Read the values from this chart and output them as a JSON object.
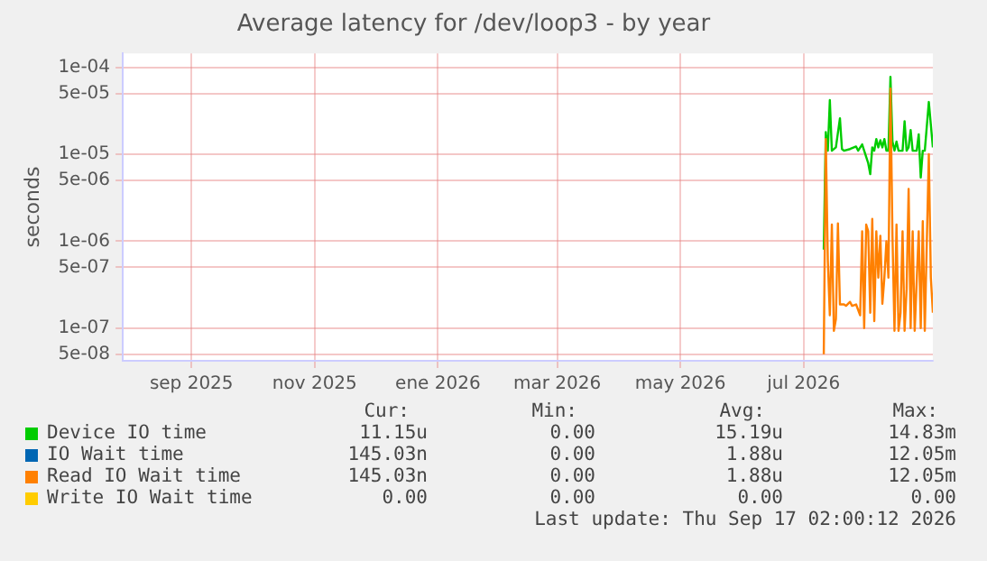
{
  "chart_data": {
    "type": "line",
    "title": "Average latency for /dev/loop3 - by year",
    "ylabel": "seconds",
    "log": "y",
    "grid": true,
    "legend": "bottom",
    "marker": "none",
    "line_style": "solid",
    "xlim": [
      "2025-08-12",
      "2026-09-17"
    ],
    "xticks": [
      {
        "value": "2025-09-15",
        "label": "sep 2025"
      },
      {
        "value": "2025-11-15",
        "label": "nov 2025"
      },
      {
        "value": "2026-01-15",
        "label": "ene 2026"
      },
      {
        "value": "2026-03-15",
        "label": "mar 2026"
      },
      {
        "value": "2026-05-15",
        "label": "may 2026"
      },
      {
        "value": "2026-07-15",
        "label": "jul 2026"
      }
    ],
    "ylim": [
      4.2e-08,
      0.000145
    ],
    "yticks": [
      {
        "value": 0.0001,
        "label": "1e-04"
      },
      {
        "value": 5e-05,
        "label": "5e-05"
      },
      {
        "value": 1e-05,
        "label": "1e-05"
      },
      {
        "value": 5e-06,
        "label": "5e-06"
      },
      {
        "value": 1e-06,
        "label": "1e-06"
      },
      {
        "value": 5e-07,
        "label": "5e-07"
      },
      {
        "value": 1e-07,
        "label": "1e-07"
      },
      {
        "value": 5e-08,
        "label": "5e-08"
      }
    ],
    "series": [
      {
        "name": "Device IO time",
        "color": "#00cc00",
        "x": [
          "2026-07-25",
          "2026-07-26",
          "2026-07-27",
          "2026-07-28",
          "2026-07-29",
          "2026-07-31",
          "2026-08-02",
          "2026-08-03",
          "2026-08-04",
          "2026-08-07",
          "2026-08-10",
          "2026-08-11",
          "2026-08-13",
          "2026-08-14",
          "2026-08-16",
          "2026-08-17",
          "2026-08-18",
          "2026-08-19",
          "2026-08-20",
          "2026-08-21",
          "2026-08-22",
          "2026-08-23",
          "2026-08-24",
          "2026-08-25",
          "2026-08-26",
          "2026-08-27",
          "2026-08-28",
          "2026-08-29",
          "2026-08-30",
          "2026-08-31",
          "2026-09-02",
          "2026-09-03",
          "2026-09-04",
          "2026-09-05",
          "2026-09-06",
          "2026-09-07",
          "2026-09-09",
          "2026-09-10",
          "2026-09-11",
          "2026-09-12",
          "2026-09-13",
          "2026-09-15",
          "2026-09-17"
        ],
        "values": [
          8e-07,
          1.8e-05,
          1.1e-05,
          4.2e-05,
          1.1e-05,
          1.2e-05,
          2.6e-05,
          1.15e-05,
          1.1e-05,
          1.15e-05,
          1.23e-05,
          1.1e-05,
          1.3e-05,
          1.1e-05,
          7.9e-06,
          5.9e-06,
          1.2e-05,
          1.1e-05,
          1.5e-05,
          1.2e-05,
          1.45e-05,
          1.2e-05,
          1.5e-05,
          1.1e-05,
          1.1e-05,
          7.8e-05,
          1.4e-05,
          1.1e-05,
          1.4e-05,
          1.1e-05,
          1.1e-05,
          2.4e-05,
          1.1e-05,
          1.2e-05,
          1.9e-05,
          1.1e-05,
          1.1e-05,
          1.7e-05,
          5.4e-06,
          1.1e-05,
          1.1e-05,
          4e-05,
          1.2e-05
        ]
      },
      {
        "name": "IO Wait time",
        "color": "#0066b3"
      },
      {
        "name": "Read IO Wait time",
        "color": "#ff8000",
        "x": [
          "2026-07-25",
          "2026-07-26",
          "2026-07-27",
          "2026-07-28",
          "2026-07-29",
          "2026-07-30",
          "2026-07-31",
          "2026-08-01",
          "2026-08-02",
          "2026-08-04",
          "2026-08-05",
          "2026-08-07",
          "2026-08-08",
          "2026-08-10",
          "2026-08-12",
          "2026-08-13",
          "2026-08-14",
          "2026-08-15",
          "2026-08-16",
          "2026-08-17",
          "2026-08-18",
          "2026-08-19",
          "2026-08-20",
          "2026-08-21",
          "2026-08-22",
          "2026-08-23",
          "2026-08-24",
          "2026-08-25",
          "2026-08-26",
          "2026-08-27",
          "2026-08-28",
          "2026-08-29",
          "2026-08-30",
          "2026-08-31",
          "2026-09-01",
          "2026-09-02",
          "2026-09-03",
          "2026-09-04",
          "2026-09-05",
          "2026-09-06",
          "2026-09-07",
          "2026-09-08",
          "2026-09-10",
          "2026-09-11",
          "2026-09-12",
          "2026-09-13",
          "2026-09-15",
          "2026-09-16",
          "2026-09-17"
        ],
        "values": [
          5e-08,
          1.5e-05,
          6e-07,
          1.4e-07,
          1.55e-06,
          9.3e-08,
          1.27e-07,
          1.6e-06,
          1.87e-07,
          1.87e-07,
          1.8e-07,
          2e-07,
          1.8e-07,
          1.87e-07,
          1.4e-07,
          1.3e-06,
          1e-07,
          1.55e-06,
          1.3e-06,
          1.5e-07,
          1.8e-06,
          1.2e-07,
          1.3e-06,
          3.8e-07,
          1.15e-06,
          1.9e-07,
          3.8e-07,
          1e-06,
          3.8e-07,
          5.7e-05,
          1.15e-06,
          9.3e-08,
          1.55e-06,
          9.3e-08,
          1.5e-07,
          1.3e-06,
          9.3e-08,
          2.8e-07,
          4e-06,
          1e-07,
          1.3e-06,
          9.3e-08,
          1.3e-06,
          1e-07,
          1.7e-06,
          9.3e-08,
          1e-05,
          3.8e-07,
          1.5e-07
        ]
      },
      {
        "name": "Write IO Wait time",
        "color": "#ffcc00"
      }
    ],
    "annotations": [
      "Cur:",
      "Min:",
      "Avg:",
      "Max:",
      "11.15u",
      "0.00",
      "15.19u",
      "14.83m",
      "145.03n",
      "0.00",
      "1.88u",
      "12.05m",
      "145.03n",
      "0.00",
      "1.88u",
      "12.05m",
      "0.00",
      "0.00",
      "0.00",
      "0.00",
      "Last update: Thu Sep 17 02:00:12 2026"
    ]
  }
}
